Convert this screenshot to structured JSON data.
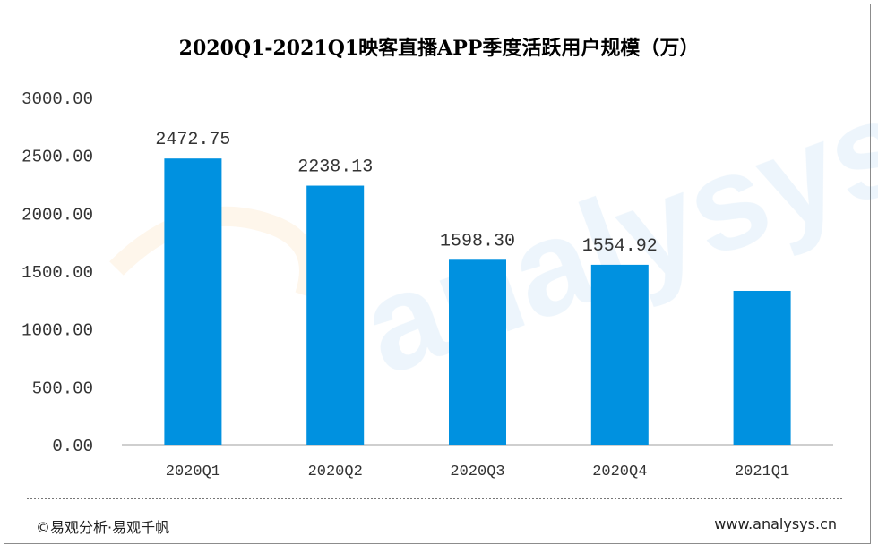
{
  "chart_data": {
    "type": "bar",
    "title": "2020Q1-2021Q1映客直播APP季度活跃用户规模（万）",
    "categories": [
      "2020Q1",
      "2020Q2",
      "2020Q3",
      "2020Q4",
      "2021Q1"
    ],
    "values": [
      2472.75,
      2238.13,
      1598.3,
      1554.92,
      1330
    ],
    "data_labels": [
      "2472.75",
      "2238.13",
      "1598.30",
      "1554.92",
      ""
    ],
    "yticks": [
      "0.00",
      "500.00",
      "1000.00",
      "1500.00",
      "2000.00",
      "2500.00",
      "3000.00"
    ],
    "ylim": [
      0,
      3000
    ],
    "grid": false,
    "bar_color": "#0091e0"
  },
  "footer": {
    "source": "©易观分析·易观千帆",
    "url": "www.analysys.cn"
  }
}
